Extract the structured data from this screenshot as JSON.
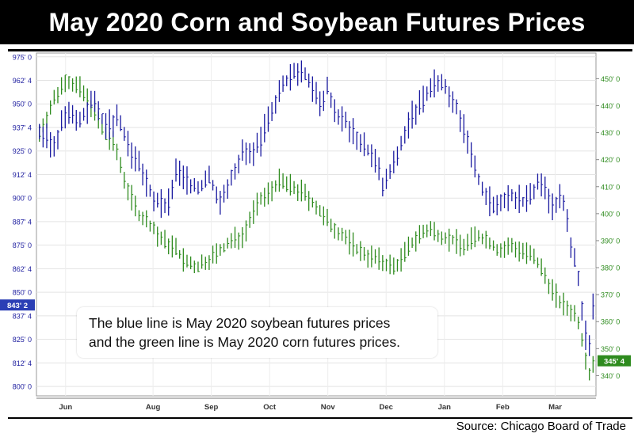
{
  "title": "May 2020 Corn and Soybean Futures Prices",
  "source": "Source: Chicago Board of Trade",
  "annotation": {
    "line1": "The blue line is May 2020 soybean futures prices",
    "line2": "and the green line is May 2020 corn futures prices."
  },
  "colors": {
    "soybean": "#1a1aa0",
    "corn": "#2e8b1e",
    "left_axis_text": "#2020a0",
    "right_axis_text": "#2e8b1e",
    "price_tag_left": "#2b3fb5",
    "price_tag_right": "#2e8b1e",
    "grid": "#e3e3e3"
  },
  "chart_data": {
    "type": "line",
    "xlabel": "",
    "months": [
      "Jun",
      "Aug",
      "Sep",
      "Oct",
      "Nov",
      "Dec",
      "Jan",
      "Feb",
      "Mar"
    ],
    "month_positions": [
      0.5,
      2.0,
      3.0,
      4.0,
      5.0,
      6.0,
      7.0,
      8.0,
      8.9
    ],
    "xlim": [
      0,
      9.6
    ],
    "left_axis": {
      "label": "Soybean",
      "ticks": [
        "975' 0",
        "962' 4",
        "950' 0",
        "937' 4",
        "925' 0",
        "912' 4",
        "900' 0",
        "887' 4",
        "875' 0",
        "862' 4",
        "850' 0",
        "837' 4",
        "825' 0",
        "812' 4",
        "800' 0"
      ],
      "ylim": [
        795,
        977
      ],
      "last_price_label": "843' 2",
      "last_price": 843.25
    },
    "right_axis": {
      "label": "Corn",
      "ticks": [
        "450' 0",
        "440' 0",
        "430' 0",
        "420' 0",
        "410' 0",
        "400' 0",
        "390' 0",
        "380' 0",
        "370' 0",
        "360' 0",
        "350' 0",
        "340' 0"
      ],
      "ylim": [
        332.5,
        459.5
      ],
      "last_price_label": "345' 4",
      "last_price": 345.5
    },
    "series": [
      {
        "name": "Soybean",
        "axis": "left",
        "x": [
          0.05,
          0.3,
          0.5,
          0.75,
          0.95,
          1.2,
          1.4,
          1.6,
          1.8,
          2.0,
          2.25,
          2.4,
          2.6,
          2.8,
          2.95,
          3.15,
          3.35,
          3.55,
          3.7,
          3.85,
          4.0,
          4.15,
          4.35,
          4.55,
          4.7,
          4.85,
          5.0,
          5.15,
          5.3,
          5.5,
          5.7,
          5.85,
          5.95,
          6.1,
          6.3,
          6.45,
          6.6,
          6.75,
          6.9,
          7.05,
          7.2,
          7.35,
          7.55,
          7.7,
          7.85,
          8.0,
          8.15,
          8.35,
          8.5,
          8.65,
          8.85,
          9.0,
          9.1,
          9.2,
          9.3,
          9.4,
          9.48,
          9.55
        ],
        "values": [
          935,
          928,
          945,
          940,
          952,
          938,
          942,
          925,
          915,
          900,
          895,
          915,
          908,
          905,
          912,
          898,
          912,
          925,
          922,
          930,
          945,
          955,
          965,
          968,
          962,
          950,
          958,
          945,
          940,
          932,
          925,
          918,
          905,
          915,
          932,
          945,
          950,
          958,
          962,
          958,
          950,
          935,
          912,
          902,
          895,
          900,
          902,
          898,
          902,
          910,
          895,
          900,
          890,
          870,
          858,
          830,
          822,
          843
        ]
      },
      {
        "name": "Corn",
        "axis": "right",
        "x": [
          0.05,
          0.3,
          0.5,
          0.75,
          0.95,
          1.15,
          1.35,
          1.55,
          1.75,
          1.95,
          2.15,
          2.35,
          2.55,
          2.75,
          2.95,
          3.15,
          3.35,
          3.55,
          3.7,
          3.85,
          4.0,
          4.15,
          4.35,
          4.55,
          4.75,
          4.95,
          5.15,
          5.35,
          5.55,
          5.75,
          5.95,
          6.15,
          6.35,
          6.55,
          6.75,
          6.95,
          7.15,
          7.35,
          7.55,
          7.75,
          7.95,
          8.15,
          8.35,
          8.5,
          8.65,
          8.8,
          8.95,
          9.1,
          9.2,
          9.3,
          9.4,
          9.48,
          9.55
        ],
        "values": [
          430,
          442,
          450,
          446,
          440,
          430,
          425,
          410,
          400,
          396,
          390,
          388,
          382,
          380,
          383,
          386,
          390,
          392,
          400,
          405,
          408,
          412,
          410,
          408,
          404,
          398,
          394,
          390,
          386,
          384,
          382,
          380,
          386,
          392,
          394,
          392,
          390,
          388,
          392,
          390,
          386,
          388,
          386,
          384,
          380,
          374,
          368,
          365,
          364,
          360,
          350,
          340,
          345
        ]
      }
    ]
  }
}
